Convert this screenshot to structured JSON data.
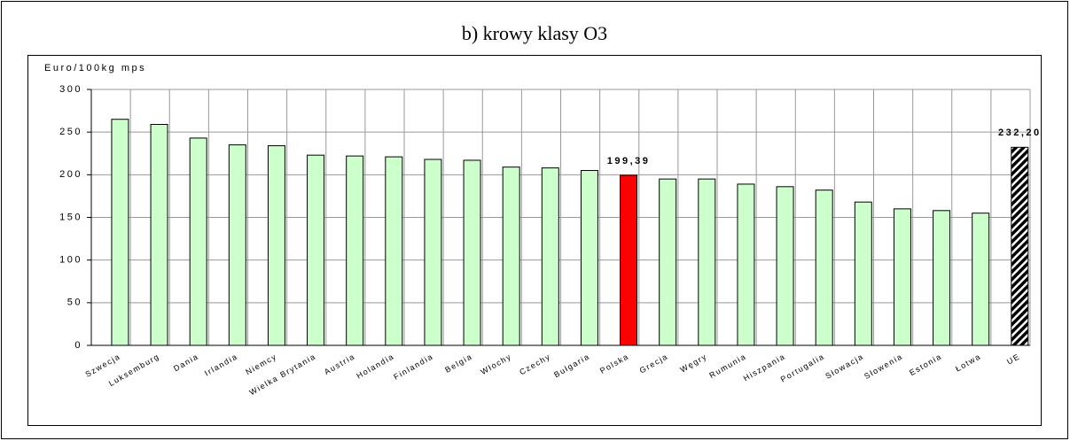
{
  "chart_data": {
    "type": "bar",
    "title": "b) krowy klasy O3",
    "y_label": "Euro/100kg mps",
    "categories": [
      "Szwecja",
      "Luksemburg",
      "Dania",
      "Irlandia",
      "Niemcy",
      "Wielka Brytania",
      "Austria",
      "Holandia",
      "Finlandia",
      "Belgia",
      "Włochy",
      "Czechy",
      "Bułgaria",
      "Polska",
      "Grecja",
      "Węgry",
      "Rumunia",
      "Hiszpania",
      "Portugalia",
      "Słowacja",
      "Słowenia",
      "Estonia",
      "Łotwa",
      "UE"
    ],
    "values": [
      265,
      259,
      243,
      235,
      234,
      223,
      222,
      221,
      218,
      217,
      209,
      208,
      205,
      199.39,
      195,
      195,
      189,
      186,
      182,
      168,
      160,
      158,
      155,
      232.2
    ],
    "value_labels": [
      null,
      null,
      null,
      null,
      null,
      null,
      null,
      null,
      null,
      null,
      null,
      null,
      null,
      "199,39",
      null,
      null,
      null,
      null,
      null,
      null,
      null,
      null,
      null,
      "232,20"
    ],
    "colors": [
      "#ccffcc",
      "#ccffcc",
      "#ccffcc",
      "#ccffcc",
      "#ccffcc",
      "#ccffcc",
      "#ccffcc",
      "#ccffcc",
      "#ccffcc",
      "#ccffcc",
      "#ccffcc",
      "#ccffcc",
      "#ccffcc",
      "#ff0000",
      "#ccffcc",
      "#ccffcc",
      "#ccffcc",
      "#ccffcc",
      "#ccffcc",
      "#ccffcc",
      "#ccffcc",
      "#ccffcc",
      "#ccffcc",
      "#000000"
    ],
    "hatched_categories": [
      "UE"
    ],
    "ylim": [
      0,
      300
    ],
    "yticks": [
      0,
      50,
      100,
      150,
      200,
      250,
      300
    ],
    "grid": true
  }
}
